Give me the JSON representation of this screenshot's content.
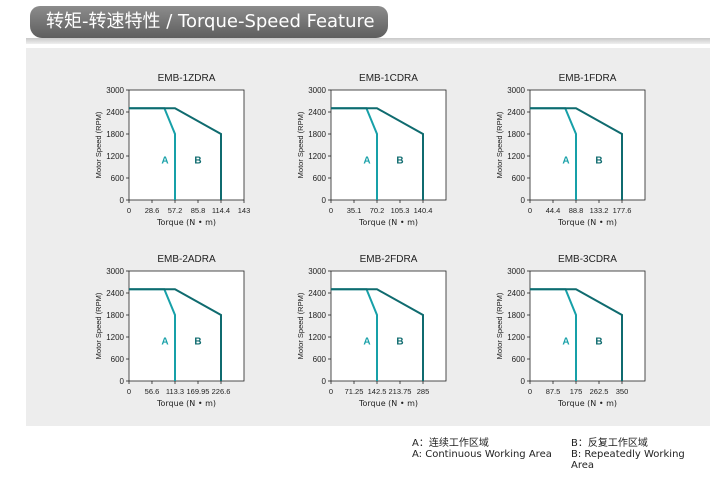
{
  "header": {
    "title": "转矩-转速特性 / Torque-Speed Feature"
  },
  "colors": {
    "curve_a": "#17a0a8",
    "curve_b": "#0f6b6f",
    "outline": "#222222",
    "label_a": "#17a0a8",
    "label_b": "#0f6b6f"
  },
  "axis_labels": {
    "xlabel": "Torque (N • m)",
    "ylabel": "Motor  Speed (RPM)"
  },
  "region_labels": {
    "a": "A",
    "b": "B"
  },
  "legend": {
    "a_cn": "A：连续工作区域",
    "b_cn": "B：反复工作区域",
    "a_en": "A: Continuous Working Area",
    "b_en": "B: Repeatedly Working Area"
  },
  "chart_data": [
    {
      "type": "line",
      "title": "EMB-1ZDRA",
      "x_ticks": [
        "0",
        "28.6",
        "57.2",
        "85.8",
        "114.4",
        "143"
      ],
      "xlim": [
        0,
        143
      ],
      "ylim": [
        0,
        3000
      ],
      "y_ticks": [
        "0",
        "600",
        "1200",
        "1800",
        "2400",
        "3000"
      ],
      "series": [
        {
          "x": [
            0,
            44,
            57.2,
            57.2
          ],
          "y": [
            2500,
            2500,
            1800,
            0
          ]
        },
        {
          "x": [
            0,
            57.2,
            114.4,
            114.4
          ],
          "y": [
            2500,
            2500,
            1800,
            0
          ]
        }
      ]
    },
    {
      "type": "line",
      "title": "EMB-1CDRA",
      "x_ticks": [
        "0",
        "35.1",
        "70.2",
        "105.3",
        "140.4"
      ],
      "xlim": [
        0,
        175.5
      ],
      "ylim": [
        0,
        3000
      ],
      "y_ticks": [
        "0",
        "600",
        "1200",
        "1800",
        "2400",
        "3000"
      ],
      "series": [
        {
          "x": [
            0,
            54,
            70.2,
            70.2
          ],
          "y": [
            2500,
            2500,
            1800,
            0
          ]
        },
        {
          "x": [
            0,
            70.2,
            140.4,
            140.4
          ],
          "y": [
            2500,
            2500,
            1800,
            0
          ]
        }
      ]
    },
    {
      "type": "line",
      "title": "EMB-1FDRA",
      "x_ticks": [
        "0",
        "44.4",
        "88.8",
        "133.2",
        "177.6"
      ],
      "xlim": [
        0,
        222
      ],
      "ylim": [
        0,
        3000
      ],
      "y_ticks": [
        "0",
        "600",
        "1200",
        "1800",
        "2400",
        "3000"
      ],
      "series": [
        {
          "x": [
            0,
            68,
            88.8,
            88.8
          ],
          "y": [
            2500,
            2500,
            1800,
            0
          ]
        },
        {
          "x": [
            0,
            88.8,
            177.6,
            177.6
          ],
          "y": [
            2500,
            2500,
            1800,
            0
          ]
        }
      ]
    },
    {
      "type": "line",
      "title": "EMB-2ADRA",
      "x_ticks": [
        "0",
        "56.6",
        "113.3",
        "169.95",
        "226.6"
      ],
      "xlim": [
        0,
        283.25
      ],
      "ylim": [
        0,
        3000
      ],
      "y_ticks": [
        "0",
        "600",
        "1200",
        "1800",
        "2400",
        "3000"
      ],
      "series": [
        {
          "x": [
            0,
            87,
            113.3,
            113.3
          ],
          "y": [
            2500,
            2500,
            1800,
            0
          ]
        },
        {
          "x": [
            0,
            113.3,
            226.6,
            226.6
          ],
          "y": [
            2500,
            2500,
            1800,
            0
          ]
        }
      ]
    },
    {
      "type": "line",
      "title": "EMB-2FDRA",
      "x_ticks": [
        "0",
        "71.25",
        "142.5",
        "213.75",
        "285"
      ],
      "xlim": [
        0,
        356.25
      ],
      "ylim": [
        0,
        3000
      ],
      "y_ticks": [
        "0",
        "600",
        "1200",
        "1800",
        "2400",
        "3000"
      ],
      "series": [
        {
          "x": [
            0,
            110,
            142.5,
            142.5
          ],
          "y": [
            2500,
            2500,
            1800,
            0
          ]
        },
        {
          "x": [
            0,
            142.5,
            285,
            285
          ],
          "y": [
            2500,
            2500,
            1800,
            0
          ]
        }
      ]
    },
    {
      "type": "line",
      "title": "EMB-3CDRA",
      "x_ticks": [
        "0",
        "87.5",
        "175",
        "262.5",
        "350"
      ],
      "xlim": [
        0,
        437.5
      ],
      "ylim": [
        0,
        3000
      ],
      "y_ticks": [
        "0",
        "600",
        "1200",
        "1800",
        "2400",
        "3000"
      ],
      "series": [
        {
          "x": [
            0,
            135,
            175,
            175
          ],
          "y": [
            2500,
            2500,
            1800,
            0
          ]
        },
        {
          "x": [
            0,
            175,
            350,
            350
          ],
          "y": [
            2500,
            2500,
            1800,
            0
          ]
        }
      ]
    }
  ]
}
